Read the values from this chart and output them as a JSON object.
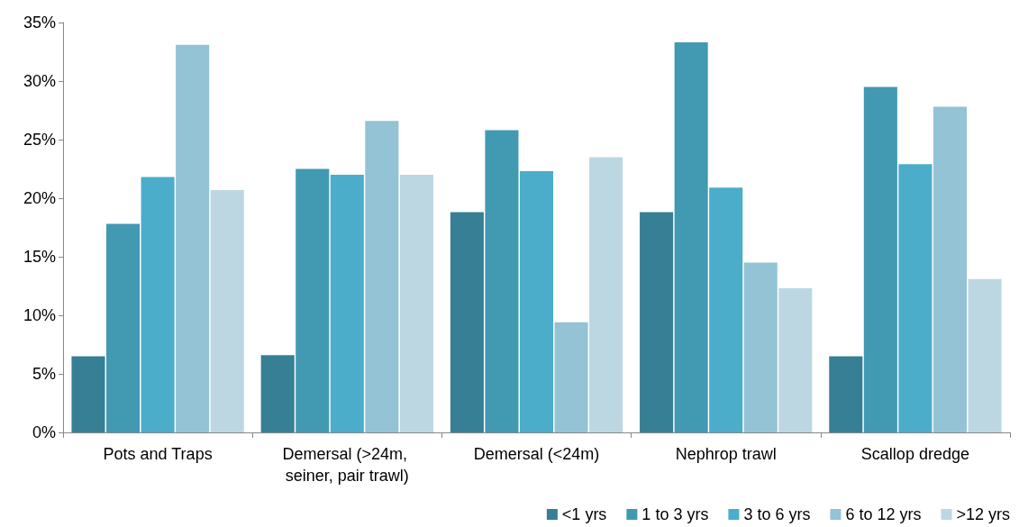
{
  "chart_data": {
    "type": "bar",
    "categories": [
      "Pots and Traps",
      "Demersal (>24m, seiner, pair trawl)",
      "Demersal (<24m)",
      "Nephrop trawl",
      "Scallop dredge"
    ],
    "series": [
      {
        "name": "<1 yrs",
        "color": "#367f94",
        "values": [
          6.5,
          6.6,
          18.8,
          18.8,
          6.5
        ]
      },
      {
        "name": "1 to 3 yrs",
        "color": "#4299b2",
        "values": [
          17.8,
          22.5,
          25.8,
          33.3,
          29.5
        ]
      },
      {
        "name": "3 to 6 yrs",
        "color": "#4badc9",
        "values": [
          21.8,
          22.0,
          22.3,
          20.9,
          22.9
        ]
      },
      {
        "name": "6 to 12 yrs",
        "color": "#93c3d4",
        "values": [
          33.1,
          26.6,
          9.4,
          14.5,
          27.8
        ]
      },
      {
        "name": ">12 yrs",
        "color": "#bcd7e2",
        "values": [
          20.7,
          22.0,
          23.5,
          12.3,
          13.1
        ]
      }
    ],
    "ylim": [
      0,
      35
    ],
    "yticks": [
      {
        "value": 0,
        "label": "0%"
      },
      {
        "value": 5,
        "label": "5%"
      },
      {
        "value": 10,
        "label": "10%"
      },
      {
        "value": 15,
        "label": "15%"
      },
      {
        "value": 20,
        "label": "20%"
      },
      {
        "value": 25,
        "label": "25%"
      },
      {
        "value": 30,
        "label": "30%"
      },
      {
        "value": 35,
        "label": "35%"
      }
    ],
    "grid": false,
    "legend": "bottom right"
  }
}
